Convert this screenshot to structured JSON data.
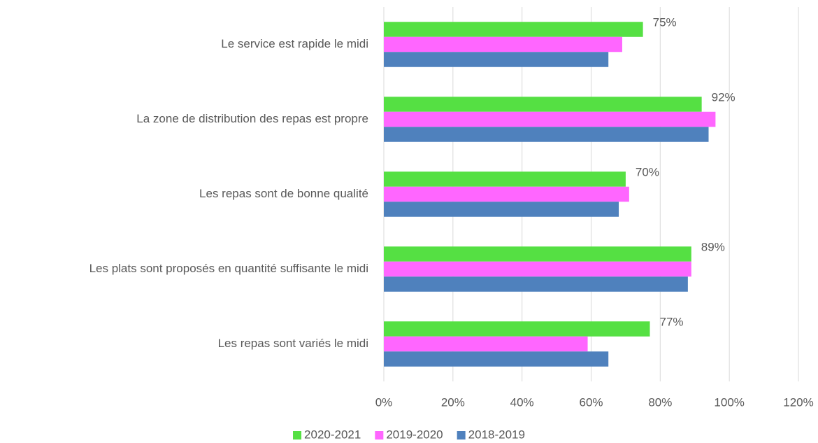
{
  "chart_data": {
    "type": "bar",
    "orientation": "horizontal",
    "categories": [
      "Le service est rapide le midi",
      "La zone de distribution des repas est propre",
      "Les repas sont de bonne qualité",
      "Les plats sont proposés en quantité suffisante le midi",
      "Les repas sont variés le midi"
    ],
    "series": [
      {
        "name": "2020-2021",
        "color": "#55e043",
        "values": [
          75,
          92,
          70,
          89,
          77
        ],
        "value_labels": [
          "75%",
          "92%",
          "70%",
          "89%",
          "77%"
        ]
      },
      {
        "name": "2019-2020",
        "color": "#ff66ff",
        "values": [
          69,
          96,
          71,
          89,
          59
        ]
      },
      {
        "name": "2018-2019",
        "color": "#4f81bd",
        "values": [
          65,
          94,
          68,
          88,
          65
        ]
      }
    ],
    "xlim": [
      0,
      120
    ],
    "xticks": [
      {
        "value": 0,
        "label": "0%"
      },
      {
        "value": 20,
        "label": "20%"
      },
      {
        "value": 40,
        "label": "40%"
      },
      {
        "value": 60,
        "label": "60%"
      },
      {
        "value": 80,
        "label": "80%"
      },
      {
        "value": 100,
        "label": "100%"
      },
      {
        "value": 120,
        "label": "120%"
      }
    ],
    "grid": true,
    "legend": "bottom"
  }
}
